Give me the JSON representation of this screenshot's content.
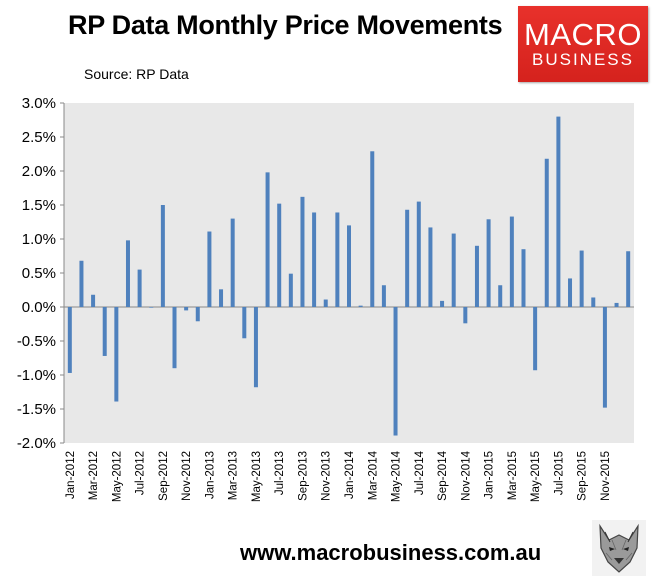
{
  "title": "RP Data Monthly Price Movements",
  "subtitle": "Source: RP Data",
  "logo": {
    "line1": "MACRO",
    "line2": "BUSINESS",
    "color": "#d9251f"
  },
  "footer_url": "www.macrobusiness.com.au",
  "wolf_logo_icon": "wolf-head-icon",
  "chart_data": {
    "type": "bar",
    "title": "RP Data Monthly Price Movements",
    "subtitle": "Source: RP Data",
    "bar_color": "#4f81bd",
    "plot_background": "#e8e8e8",
    "grid": false,
    "ylim": [
      -0.02,
      0.03
    ],
    "y_ticks": [
      -0.02,
      -0.015,
      -0.01,
      -0.005,
      0,
      0.005,
      0.01,
      0.015,
      0.02,
      0.025,
      0.03
    ],
    "y_tick_labels": [
      "-2.0%",
      "-1.5%",
      "-1.0%",
      "-0.5%",
      "0.0%",
      "0.5%",
      "1.0%",
      "1.5%",
      "2.0%",
      "2.5%",
      "3.0%"
    ],
    "x_tick_labels": [
      "Jan-2012",
      "Mar-2012",
      "May-2012",
      "Jul-2012",
      "Sep-2012",
      "Nov-2012",
      "Jan-2013",
      "Mar-2013",
      "May-2013",
      "Jul-2013",
      "Sep-2013",
      "Nov-2013",
      "Jan-2014",
      "Mar-2014",
      "May-2014",
      "Jul-2014",
      "Sep-2014",
      "Nov-2014",
      "Jan-2015",
      "Mar-2015",
      "May-2015",
      "Jul-2015",
      "Sep-2015",
      "Nov-2015"
    ],
    "categories": [
      "Jan-2012",
      "Feb-2012",
      "Mar-2012",
      "Apr-2012",
      "May-2012",
      "Jun-2012",
      "Jul-2012",
      "Aug-2012",
      "Sep-2012",
      "Oct-2012",
      "Nov-2012",
      "Dec-2012",
      "Jan-2013",
      "Feb-2013",
      "Mar-2013",
      "Apr-2013",
      "May-2013",
      "Jun-2013",
      "Jul-2013",
      "Aug-2013",
      "Sep-2013",
      "Oct-2013",
      "Nov-2013",
      "Dec-2013",
      "Jan-2014",
      "Feb-2014",
      "Mar-2014",
      "Apr-2014",
      "May-2014",
      "Jun-2014",
      "Jul-2014",
      "Aug-2014",
      "Sep-2014",
      "Oct-2014",
      "Nov-2014",
      "Dec-2014",
      "Jan-2015",
      "Feb-2015",
      "Mar-2015",
      "Apr-2015",
      "May-2015",
      "Jun-2015",
      "Jul-2015",
      "Aug-2015",
      "Sep-2015",
      "Oct-2015",
      "Nov-2015",
      "Dec-2015",
      "Jan-2016"
    ],
    "values": [
      -0.0097,
      0.0068,
      0.0018,
      -0.0072,
      -0.0139,
      0.0098,
      0.0055,
      -0.0001,
      0.015,
      -0.009,
      -0.0005,
      -0.0021,
      0.0111,
      0.0026,
      0.013,
      -0.0046,
      -0.0118,
      0.0198,
      0.0152,
      0.0049,
      0.0162,
      0.0139,
      0.0011,
      0.0139,
      0.012,
      0.0002,
      0.0229,
      0.0032,
      -0.0189,
      0.0143,
      0.0155,
      0.0117,
      0.0009,
      0.0108,
      -0.0024,
      0.009,
      0.0129,
      0.0032,
      0.0133,
      0.0085,
      -0.0093,
      0.0218,
      0.028,
      0.0042,
      0.0083,
      0.0014,
      -0.0148,
      0.0006,
      0.0082
    ]
  }
}
